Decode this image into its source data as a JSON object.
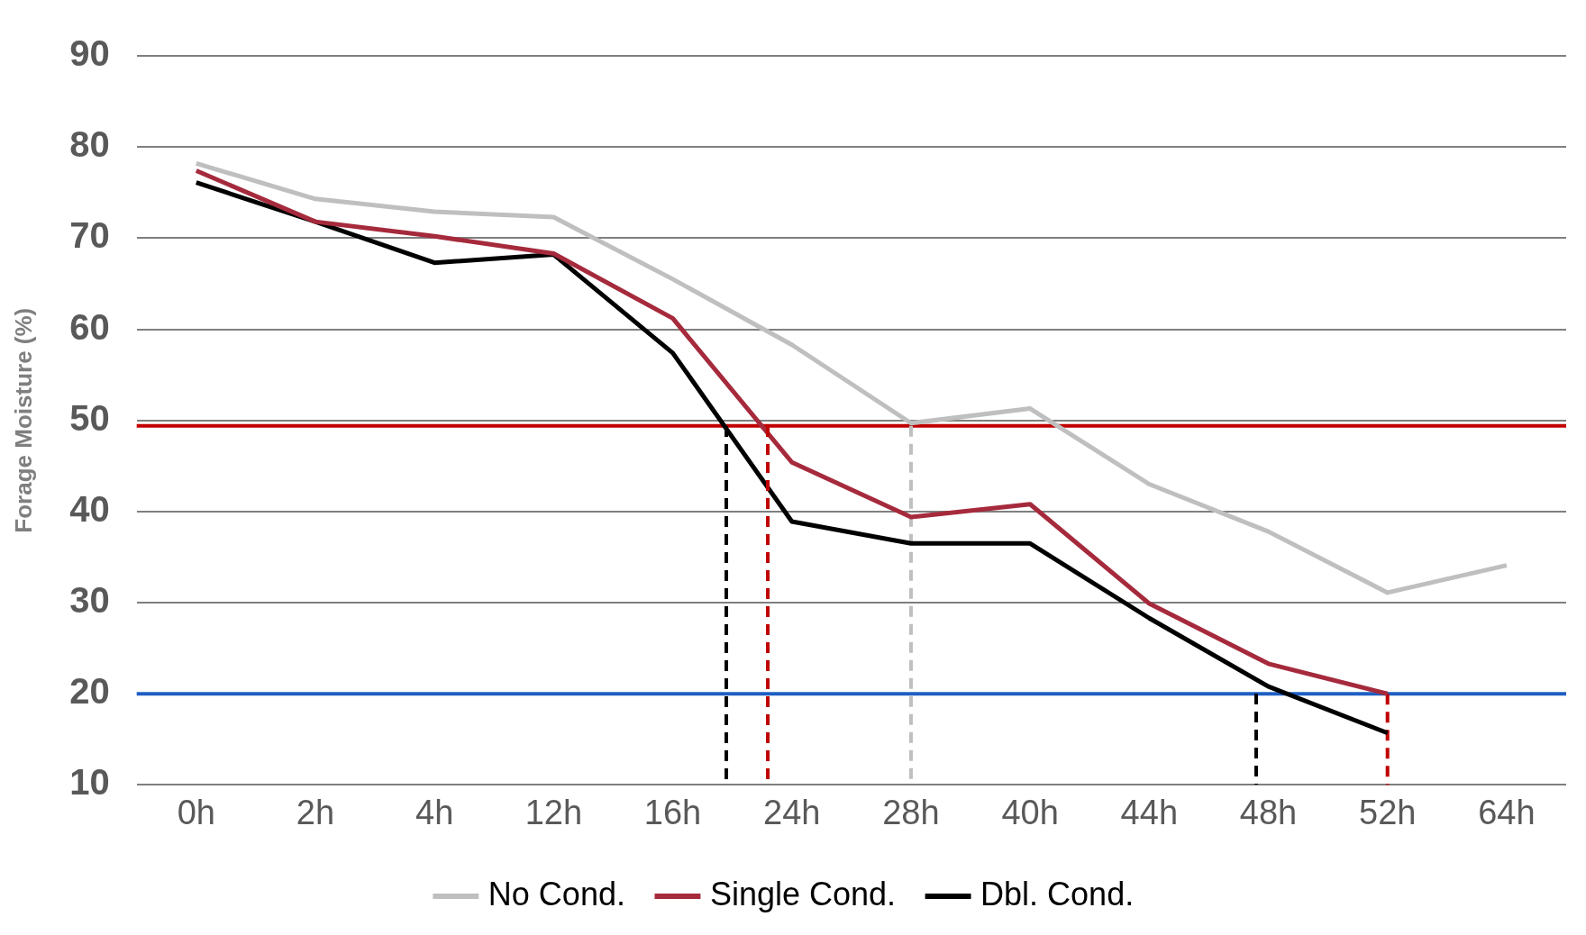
{
  "chart_data": {
    "type": "line",
    "ylabel": "Forage Moisture (%)",
    "categories": [
      "0h",
      "2h",
      "4h",
      "12h",
      "16h",
      "24h",
      "28h",
      "40h",
      "44h",
      "48h",
      "52h",
      "64h"
    ],
    "ylim": [
      10,
      90
    ],
    "yticks": [
      10,
      20,
      30,
      40,
      50,
      60,
      70,
      80,
      90
    ],
    "grid": "y",
    "legend": "bottom",
    "marker": "none",
    "line_style": "solid",
    "series": [
      {
        "name": "No Cond.",
        "color": "#bfbfbf",
        "values": [
          78.2,
          74.3,
          72.9,
          72.3,
          65.5,
          58.3,
          49.7,
          51.3,
          43.0,
          37.8,
          31.1,
          34.1
        ]
      },
      {
        "name": "Single Cond.",
        "color": "#a52a3c",
        "values": [
          77.4,
          71.8,
          70.2,
          68.3,
          61.2,
          45.4,
          39.4,
          40.8,
          29.9,
          23.3,
          20.0,
          null
        ]
      },
      {
        "name": "Dbl. Cond.",
        "color": "#000000",
        "values": [
          76.1,
          71.8,
          67.3,
          68.2,
          57.4,
          38.9,
          36.5,
          36.5,
          28.3,
          20.8,
          15.7,
          null
        ]
      },
      {
        "type": "line",
        "color": "#bfbfbf",
        "x": [
          "28h",
          "28h"
        ],
        "values": [
          49.4,
          10
        ],
        "line_style": "dashed"
      },
      {
        "type": "line",
        "color": "#c00000",
        "x": [
          "52h",
          "52h"
        ],
        "values": [
          20,
          10
        ],
        "line_style": "dashed"
      }
    ],
    "ref_lines": [
      {
        "axis": "y",
        "value": 49.4,
        "color": "#c00000"
      },
      {
        "axis": "y",
        "value": 20,
        "color": "#1f5fc4"
      }
    ]
  }
}
